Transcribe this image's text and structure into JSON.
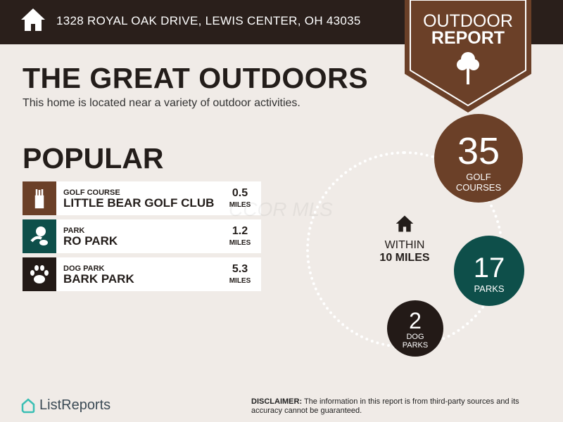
{
  "header": {
    "address": "1328 ROYAL OAK DRIVE, LEWIS CENTER, OH 43035"
  },
  "badge": {
    "line1": "OUTDOOR",
    "line2": "REPORT",
    "icon": "tree-icon"
  },
  "title": "THE GREAT OUTDOORS",
  "subtitle": "This home is located near a variety of outdoor activities.",
  "popular": {
    "heading": "POPULAR",
    "items": [
      {
        "category": "GOLF COURSE",
        "name": "LITTLE BEAR GOLF CLUB",
        "distance": "0.5",
        "unit": "MILES",
        "icon": "golf-bag-icon",
        "color": "#6b4028"
      },
      {
        "category": "PARK",
        "name": "RO PARK",
        "distance": "1.2",
        "unit": "MILES",
        "icon": "park-icon",
        "color": "#0e4f4a"
      },
      {
        "category": "DOG PARK",
        "name": "BARK PARK",
        "distance": "5.3",
        "unit": "MILES",
        "icon": "paw-icon",
        "color": "#231a17"
      }
    ]
  },
  "watermark": "CCOR MLS",
  "radius": {
    "line1": "WITHIN",
    "line2": "10 MILES"
  },
  "counts": [
    {
      "value": "35",
      "label1": "GOLF",
      "label2": "COURSES",
      "color": "#6b4028"
    },
    {
      "value": "17",
      "label1": "PARKS",
      "color": "#0e4f4a"
    },
    {
      "value": "2",
      "label1": "DOG",
      "label2": "PARKS",
      "color": "#231a17"
    }
  ],
  "footer": {
    "logo": "ListReports",
    "disclaimer_label": "DISCLAIMER:",
    "disclaimer": " The information in this report is from third-party sources and its accuracy cannot be guaranteed."
  }
}
